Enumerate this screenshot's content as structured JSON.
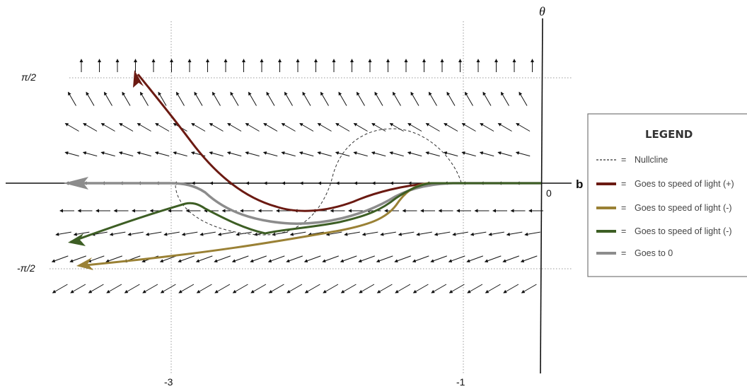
{
  "diagram": {
    "axes": {
      "horizontal_label": "b",
      "vertical_label": "θ",
      "origin_label": "0",
      "x_ticks": [
        "-3",
        "-1"
      ],
      "y_ticks": [
        "π/2",
        "-π/2"
      ]
    },
    "legend": {
      "title": "LEGEND",
      "separator": "=",
      "items": [
        {
          "label": "Nullcline",
          "style": "dashed",
          "color": "#333333"
        },
        {
          "label": "Goes to speed of light (+)",
          "style": "solid",
          "color": "#6b1a12"
        },
        {
          "label": "Goes to speed of light (-)",
          "style": "solid",
          "color": "#9a8135"
        },
        {
          "label": "Goes to speed of light (-)",
          "style": "solid",
          "color": "#3d5e24"
        },
        {
          "label": "Goes to 0",
          "style": "solid",
          "color": "#8c8c8c"
        }
      ]
    }
  }
}
